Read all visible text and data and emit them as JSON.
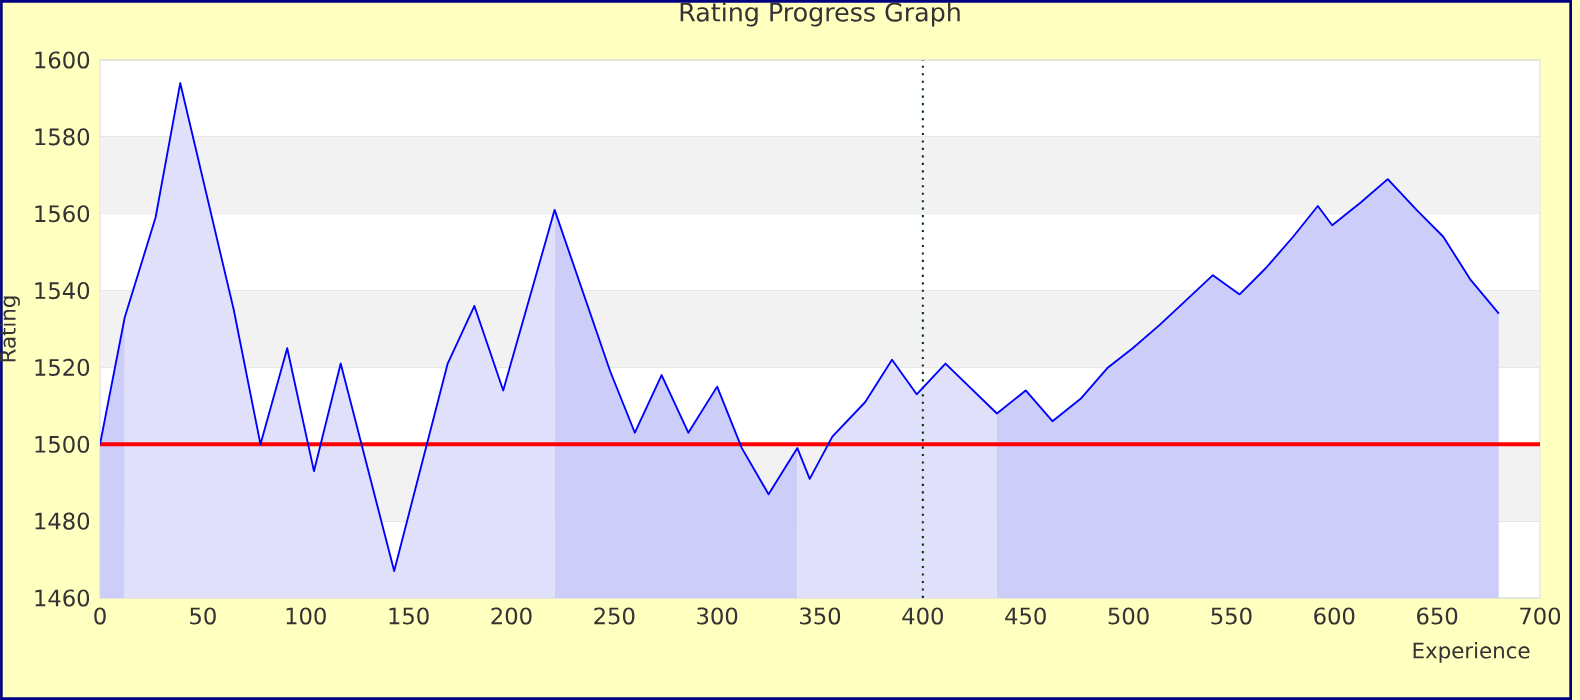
{
  "chart_data": {
    "type": "line",
    "title": "Rating Progress Graph",
    "xlabel": "Experience",
    "ylabel": "Rating",
    "xlim": [
      0,
      700
    ],
    "ylim": [
      1460,
      1600
    ],
    "xticks": [
      0,
      50,
      100,
      150,
      200,
      250,
      300,
      350,
      400,
      450,
      500,
      550,
      600,
      650,
      700
    ],
    "yticks": [
      1460,
      1480,
      1500,
      1520,
      1540,
      1560,
      1580,
      1600
    ],
    "grid": "y",
    "bands": [
      {
        "axis": "y",
        "from": 1480,
        "to": 1500,
        "color": "#f2f2f2"
      },
      {
        "axis": "y",
        "from": 1520,
        "to": 1540,
        "color": "#f2f2f2"
      },
      {
        "axis": "y",
        "from": 1560,
        "to": 1580,
        "color": "#f2f2f2"
      }
    ],
    "ref_lines": [
      {
        "axis": "y",
        "value": 1500,
        "color": "#ff0000",
        "line_style": "solid"
      },
      {
        "axis": "x",
        "value": 400,
        "color": "#004000",
        "line_style": "dotted"
      }
    ],
    "series": [
      {
        "type": "area",
        "color": "#cdcdfa",
        "x": [
          0,
          12
        ],
        "values": [
          1500,
          1533
        ]
      },
      {
        "type": "area",
        "color": "#e0e0fa",
        "x": [
          12,
          27,
          39,
          65,
          78,
          91,
          104,
          117,
          143,
          169,
          182,
          196,
          221
        ],
        "values": [
          1533,
          1559,
          1594,
          1535,
          1500,
          1525,
          1493,
          1521,
          1467,
          1521,
          1536,
          1514,
          1561
        ]
      },
      {
        "type": "area",
        "color": "#cdcdfa",
        "x": [
          221,
          248,
          260,
          273,
          286,
          300,
          312,
          325,
          339
        ],
        "values": [
          1561,
          1519,
          1503,
          1518,
          1503,
          1515,
          1499,
          1487,
          1499
        ]
      },
      {
        "type": "area",
        "color": "#e0e0fa",
        "x": [
          339,
          345,
          356,
          372,
          385,
          397,
          411,
          436
        ],
        "values": [
          1499,
          1491,
          1502,
          1511,
          1522,
          1513,
          1521,
          1508
        ]
      },
      {
        "type": "area",
        "color": "#cdcdfa",
        "x": [
          436,
          450,
          463,
          477,
          490,
          502,
          515,
          527,
          541,
          554,
          567,
          580,
          592,
          599,
          613,
          626,
          640,
          653,
          666,
          680
        ],
        "values": [
          1508,
          1514,
          1506,
          1512,
          1520,
          1525,
          1531,
          1537,
          1544,
          1539,
          1546,
          1554,
          1562,
          1557,
          1563,
          1569,
          1561,
          1554,
          1543,
          1534
        ]
      },
      {
        "color": "#0000ff",
        "x": [
          0,
          12,
          27,
          39,
          65,
          78,
          91,
          104,
          117,
          143,
          169,
          182,
          196,
          221,
          248,
          260,
          273,
          286,
          300,
          312,
          325,
          339,
          345,
          356,
          372,
          385,
          397,
          411,
          436,
          450,
          463,
          477,
          490,
          502,
          515,
          527,
          541,
          554,
          567,
          580,
          592,
          599,
          613,
          626,
          640,
          653,
          666,
          680
        ],
        "values": [
          1500,
          1533,
          1559,
          1594,
          1535,
          1500,
          1525,
          1493,
          1521,
          1467,
          1521,
          1536,
          1514,
          1561,
          1519,
          1503,
          1518,
          1503,
          1515,
          1499,
          1487,
          1499,
          1491,
          1502,
          1511,
          1522,
          1513,
          1521,
          1508,
          1514,
          1506,
          1512,
          1520,
          1525,
          1531,
          1537,
          1544,
          1539,
          1546,
          1554,
          1562,
          1557,
          1563,
          1569,
          1561,
          1554,
          1543,
          1534
        ]
      }
    ]
  }
}
